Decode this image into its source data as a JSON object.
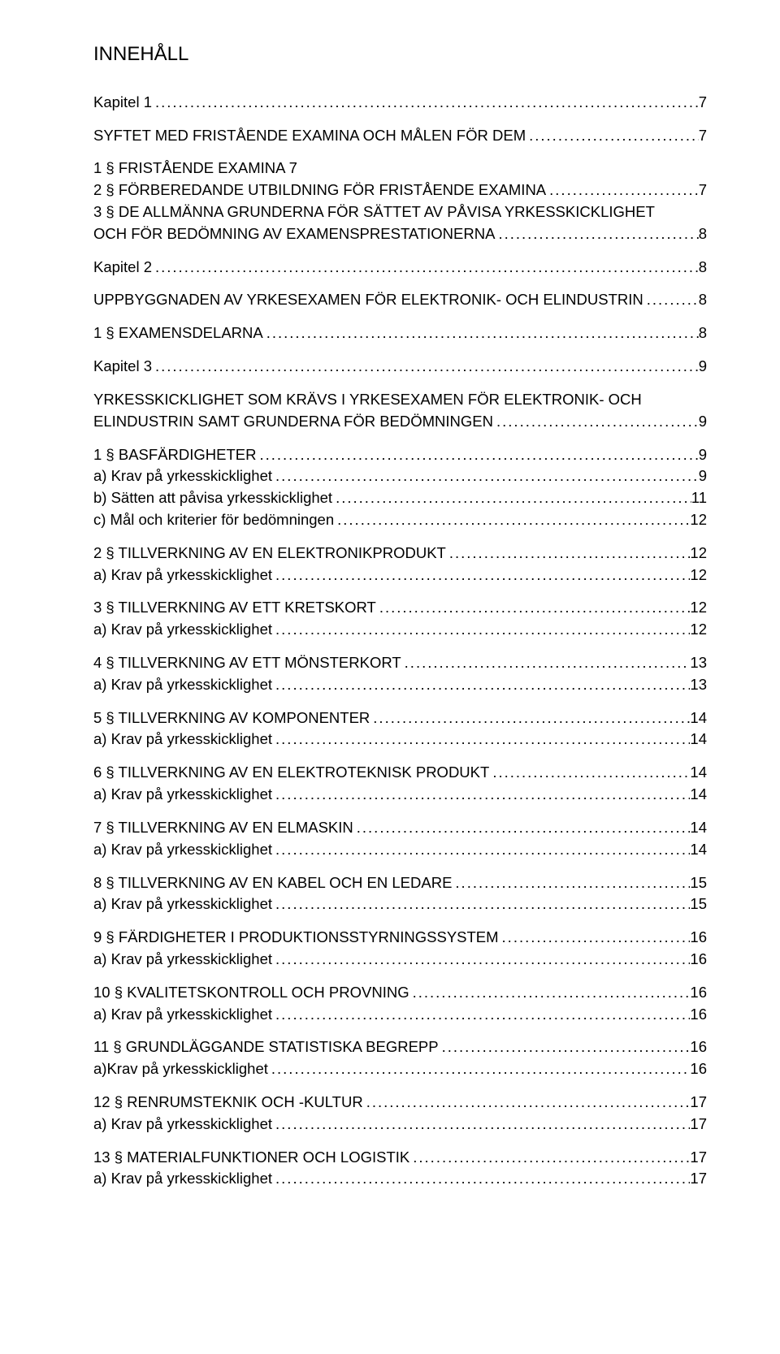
{
  "title": "INNEHÅLL",
  "entries": [
    {
      "label": "Kapitel 1",
      "page": "7",
      "gapBefore": "none"
    },
    {
      "label": "SYFTET MED FRISTÅENDE EXAMINA OCH MÅLEN FÖR DEM",
      "page": "7",
      "gapBefore": "pair"
    },
    {
      "label": "1 § FRISTÅENDE EXAMINA            7",
      "nodots": true,
      "gapBefore": "pair"
    },
    {
      "label": "2 § FÖRBEREDANDE UTBILDNING FÖR FRISTÅENDE EXAMINA",
      "page": "7",
      "gapBefore": "none"
    },
    {
      "label": "3 § DE ALLMÄNNA GRUNDERNA FÖR SÄTTET AV PÅVISA YRKESSKICKLIGHET",
      "nodots": true,
      "gapBefore": "none"
    },
    {
      "label": "OCH FÖR BEDÖMNING AV EXAMENSPRESTATIONERNA",
      "page": "8",
      "gapBefore": "none"
    },
    {
      "label": "Kapitel 2",
      "page": "8",
      "gapBefore": "pair"
    },
    {
      "label": "UPPBYGGNADEN AV YRKESEXAMEN FÖR ELEKTRONIK- OCH ELINDUSTRIN",
      "page": "8",
      "gapBefore": "pair"
    },
    {
      "label": "1 § EXAMENSDELARNA",
      "page": "8",
      "gapBefore": "pair"
    },
    {
      "label": "Kapitel 3",
      "page": "9",
      "gapBefore": "pair"
    },
    {
      "label": "YRKESSKICKLIGHET SOM KRÄVS I YRKESEXAMEN FÖR ELEKTRONIK- OCH",
      "nodots": true,
      "gapBefore": "pair"
    },
    {
      "label": "ELINDUSTRIN SAMT GRUNDERNA FÖR BEDÖMNINGEN",
      "page": "9",
      "gapBefore": "none"
    },
    {
      "label": "1 § BASFÄRDIGHETER",
      "page": "9",
      "gapBefore": "pair"
    },
    {
      "label": "a) Krav på yrkesskicklighet",
      "page": "9",
      "gapBefore": "none"
    },
    {
      "label": "b) Sätten att påvisa yrkesskicklighet",
      "page": "11",
      "gapBefore": "none"
    },
    {
      "label": "c) Mål och kriterier för bedömningen",
      "page": "12",
      "gapBefore": "none"
    },
    {
      "label": "2 § TILLVERKNING AV EN ELEKTRONIKPRODUKT",
      "page": "12",
      "gapBefore": "group"
    },
    {
      "label": "a) Krav på yrkesskicklighet",
      "page": "12",
      "gapBefore": "none"
    },
    {
      "label": "3 § TILLVERKNING AV ETT KRETSKORT",
      "page": "12",
      "gapBefore": "group"
    },
    {
      "label": "a) Krav på yrkesskicklighet",
      "page": "12",
      "gapBefore": "none"
    },
    {
      "label": "4 § TILLVERKNING AV ETT MÖNSTERKORT",
      "page": "13",
      "gapBefore": "group"
    },
    {
      "label": "a) Krav på yrkesskicklighet",
      "page": "13",
      "gapBefore": "none"
    },
    {
      "label": "5 § TILLVERKNING AV KOMPONENTER",
      "page": "14",
      "gapBefore": "group"
    },
    {
      "label": "a) Krav på yrkesskicklighet",
      "page": "14",
      "gapBefore": "none"
    },
    {
      "label": "6 § TILLVERKNING AV EN ELEKTROTEKNISK PRODUKT",
      "page": "14",
      "gapBefore": "group"
    },
    {
      "label": "a) Krav på yrkesskicklighet",
      "page": "14",
      "gapBefore": "none"
    },
    {
      "label": "7 § TILLVERKNING AV EN ELMASKIN",
      "page": "14",
      "gapBefore": "group"
    },
    {
      "label": "a) Krav på yrkesskicklighet",
      "page": "14",
      "gapBefore": "none"
    },
    {
      "label": "8 § TILLVERKNING AV EN KABEL OCH EN LEDARE",
      "page": "15",
      "gapBefore": "group"
    },
    {
      "label": "a) Krav på yrkesskicklighet",
      "page": "15",
      "gapBefore": "none"
    },
    {
      "label": "9 § FÄRDIGHETER I PRODUKTIONSSTYRNINGSSYSTEM",
      "page": "16",
      "gapBefore": "group"
    },
    {
      "label": "a) Krav på yrkesskicklighet",
      "page": "16",
      "gapBefore": "none"
    },
    {
      "label": "10 § KVALITETSKONTROLL OCH PROVNING",
      "page": "16",
      "gapBefore": "group"
    },
    {
      "label": "a) Krav på yrkesskicklighet",
      "page": "16",
      "gapBefore": "none"
    },
    {
      "label": "11 § GRUNDLÄGGANDE STATISTISKA BEGREPP",
      "page": "16",
      "gapBefore": "group"
    },
    {
      "label": "a)Krav på yrkesskicklighet",
      "page": "16",
      "gapBefore": "none"
    },
    {
      "label": "12 § RENRUMSTEKNIK OCH -KULTUR",
      "page": "17",
      "gapBefore": "group"
    },
    {
      "label": "a) Krav på yrkesskicklighet",
      "page": "17",
      "gapBefore": "none"
    },
    {
      "label": "13 § MATERIALFUNKTIONER OCH LOGISTIK",
      "page": "17",
      "gapBefore": "group"
    },
    {
      "label": "a) Krav på yrkesskicklighet",
      "page": "17",
      "gapBefore": "none"
    }
  ]
}
